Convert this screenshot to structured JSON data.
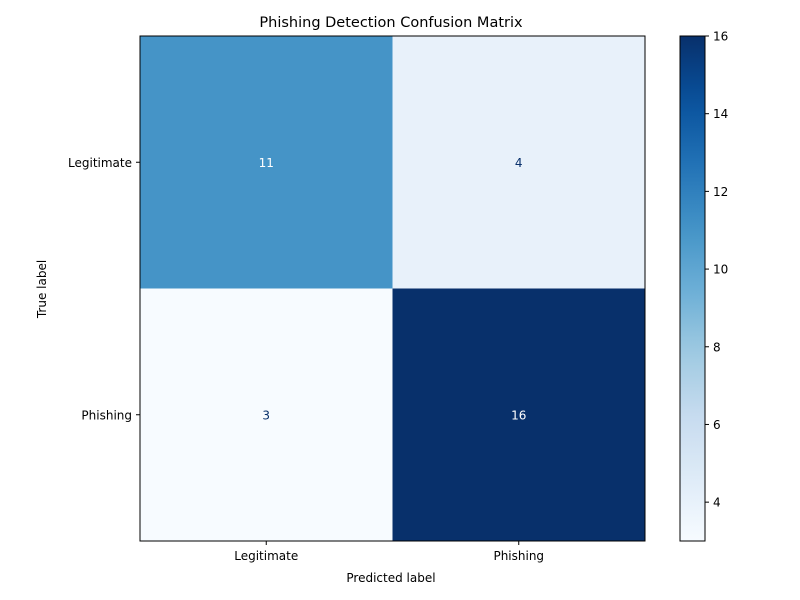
{
  "chart_data": {
    "type": "heatmap",
    "title": "Phishing Detection Confusion Matrix",
    "xlabel": "Predicted label",
    "ylabel": "True label",
    "x_categories": [
      "Legitimate",
      "Phishing"
    ],
    "y_categories": [
      "Legitimate",
      "Phishing"
    ],
    "values": [
      [
        11,
        4
      ],
      [
        3,
        16
      ]
    ],
    "colormap": "Blues",
    "color_range": [
      3,
      16
    ],
    "colorbar_ticks": [
      "4",
      "6",
      "8",
      "10",
      "12",
      "14",
      "16"
    ],
    "grid": false,
    "colorbar_position": "right"
  }
}
